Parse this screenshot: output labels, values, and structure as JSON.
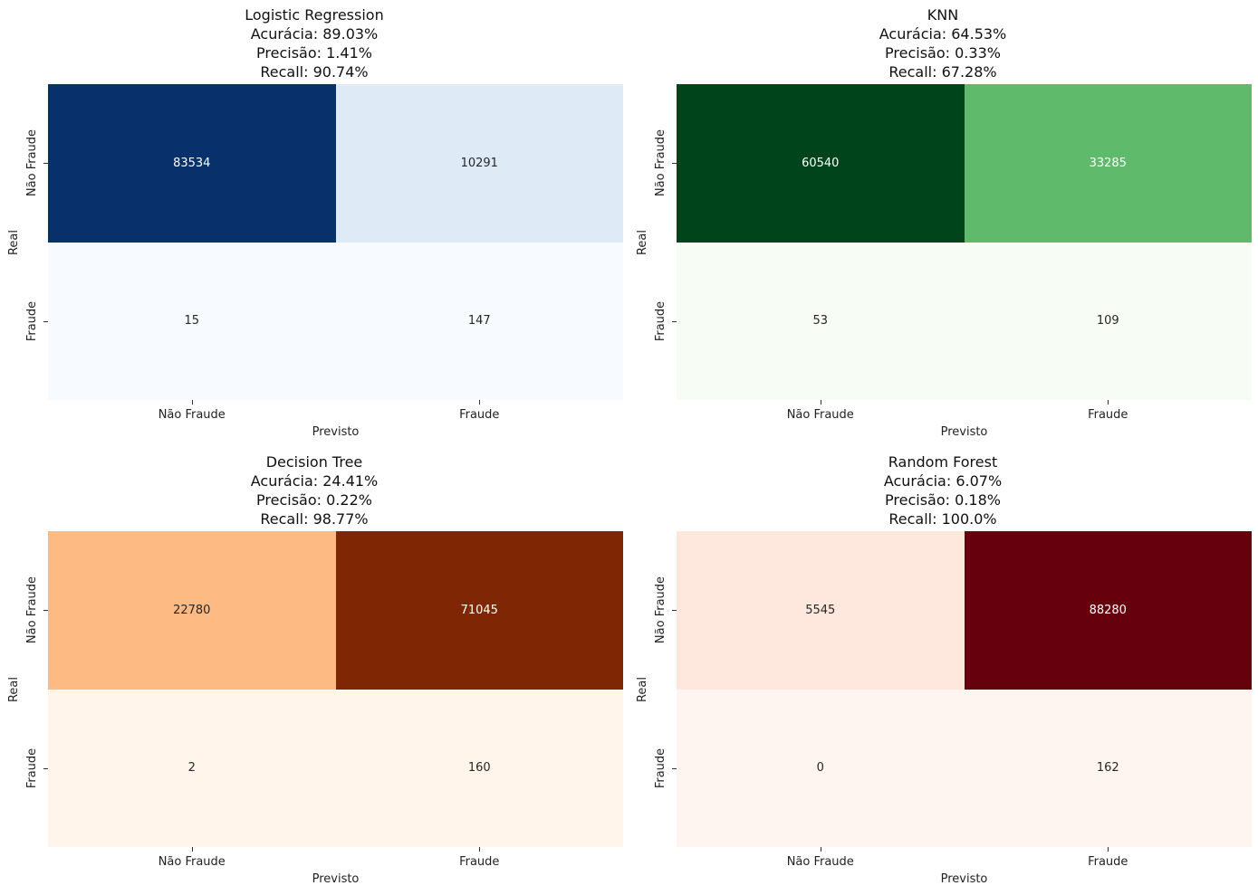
{
  "chart_data": [
    {
      "type": "heatmap",
      "title": "Logistic Regression",
      "metrics": [
        "Acurácia: 89.03%",
        "Precisão: 1.41%",
        "Recall: 90.74%"
      ],
      "xlabel": "Previsto",
      "ylabel": "Real",
      "x_categories": [
        "Não Fraude",
        "Fraude"
      ],
      "y_categories": [
        "Não Fraude",
        "Fraude"
      ],
      "values": [
        [
          83534,
          10291
        ],
        [
          15,
          147
        ]
      ],
      "colormap": "Blues",
      "colors": [
        [
          "#08306b",
          "#deebf7"
        ],
        [
          "#f7fbff",
          "#f7fbff"
        ]
      ],
      "text_colors": [
        [
          "#ffffff",
          "#262626"
        ],
        [
          "#262626",
          "#262626"
        ]
      ]
    },
    {
      "type": "heatmap",
      "title": "KNN",
      "metrics": [
        "Acurácia: 64.53%",
        "Precisão: 0.33%",
        "Recall: 67.28%"
      ],
      "xlabel": "Previsto",
      "ylabel": "Real",
      "x_categories": [
        "Não Fraude",
        "Fraude"
      ],
      "y_categories": [
        "Não Fraude",
        "Fraude"
      ],
      "values": [
        [
          60540,
          33285
        ],
        [
          53,
          109
        ]
      ],
      "colormap": "Greens",
      "colors": [
        [
          "#00441b",
          "#5fbb6b"
        ],
        [
          "#f7fcf5",
          "#f7fcf5"
        ]
      ],
      "text_colors": [
        [
          "#ffffff",
          "#ffffff"
        ],
        [
          "#262626",
          "#262626"
        ]
      ]
    },
    {
      "type": "heatmap",
      "title": "Decision Tree",
      "metrics": [
        "Acurácia: 24.41%",
        "Precisão: 0.22%",
        "Recall: 98.77%"
      ],
      "xlabel": "Previsto",
      "ylabel": "Real",
      "x_categories": [
        "Não Fraude",
        "Fraude"
      ],
      "y_categories": [
        "Não Fraude",
        "Fraude"
      ],
      "values": [
        [
          22780,
          71045
        ],
        [
          2,
          160
        ]
      ],
      "colormap": "Oranges",
      "colors": [
        [
          "#fdba82",
          "#7f2704"
        ],
        [
          "#fff5eb",
          "#fff5eb"
        ]
      ],
      "text_colors": [
        [
          "#262626",
          "#ffffff"
        ],
        [
          "#262626",
          "#262626"
        ]
      ]
    },
    {
      "type": "heatmap",
      "title": "Random Forest",
      "metrics": [
        "Acurácia: 6.07%",
        "Precisão: 0.18%",
        "Recall: 100.0%"
      ],
      "xlabel": "Previsto",
      "ylabel": "Real",
      "x_categories": [
        "Não Fraude",
        "Fraude"
      ],
      "y_categories": [
        "Não Fraude",
        "Fraude"
      ],
      "values": [
        [
          5545,
          88280
        ],
        [
          0,
          162
        ]
      ],
      "colormap": "Reds",
      "colors": [
        [
          "#fee8de",
          "#67000d"
        ],
        [
          "#fff5f0",
          "#fff5f0"
        ]
      ],
      "text_colors": [
        [
          "#262626",
          "#ffffff"
        ],
        [
          "#262626",
          "#262626"
        ]
      ]
    }
  ]
}
